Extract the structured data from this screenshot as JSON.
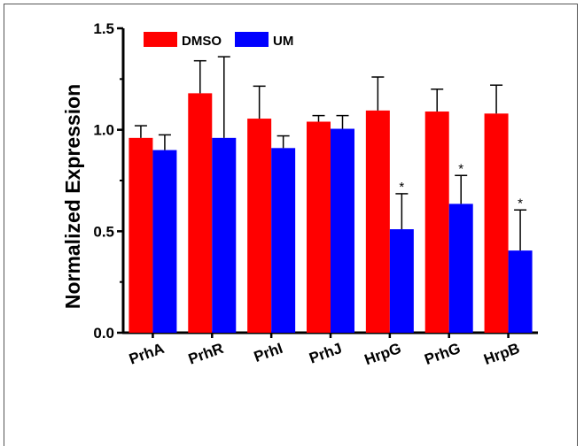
{
  "chart_data": {
    "type": "bar",
    "ylabel": "Normalized Expression",
    "ylim": [
      0.0,
      1.5
    ],
    "yticks": [
      "0.0",
      "0.5",
      "1.0",
      "1.5"
    ],
    "categories": [
      "PrhA",
      "PrhR",
      "PrhI",
      "PrhJ",
      "HrpG",
      "PrhG",
      "HrpB"
    ],
    "series": [
      {
        "name": "DMSO",
        "color": "#ff0000",
        "values": [
          0.96,
          1.18,
          1.055,
          1.04,
          1.095,
          1.09,
          1.08
        ],
        "errors": [
          0.06,
          0.16,
          0.16,
          0.03,
          0.165,
          0.11,
          0.14
        ]
      },
      {
        "name": "UM",
        "color": "#0000ff",
        "values": [
          0.9,
          0.96,
          0.91,
          1.005,
          0.51,
          0.635,
          0.405
        ],
        "errors": [
          0.075,
          0.4,
          0.06,
          0.065,
          0.175,
          0.14,
          0.2
        ]
      }
    ],
    "significance": [
      "",
      "",
      "",
      "",
      "*",
      "*",
      "*"
    ],
    "legend_position": "top-left",
    "grid": false
  }
}
